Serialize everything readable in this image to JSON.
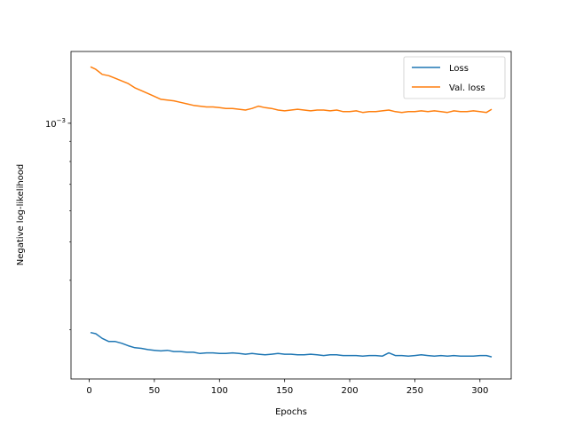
{
  "chart_data": {
    "type": "line",
    "title": "",
    "xlabel": "Epochs",
    "ylabel": "Negative log-likelihood",
    "xlim": [
      -14,
      324
    ],
    "xticks": [
      0,
      50,
      100,
      150,
      200,
      250,
      300
    ],
    "yscale": "log",
    "ylim": [
      0.000225,
      0.00152
    ],
    "yticks": [
      {
        "value": 0.001,
        "base": "10",
        "exp": "−3"
      }
    ],
    "grid": false,
    "legend_position": "top-right",
    "series": [
      {
        "name": "Loss",
        "color": "#1f77b4",
        "x": [
          1,
          5,
          10,
          15,
          20,
          25,
          30,
          35,
          40,
          45,
          50,
          55,
          60,
          65,
          70,
          75,
          80,
          85,
          90,
          95,
          100,
          105,
          110,
          115,
          120,
          125,
          130,
          135,
          140,
          145,
          150,
          155,
          160,
          165,
          170,
          175,
          180,
          185,
          190,
          195,
          200,
          205,
          210,
          215,
          220,
          225,
          230,
          235,
          240,
          245,
          250,
          255,
          260,
          265,
          270,
          275,
          280,
          285,
          290,
          295,
          300,
          305,
          309
        ],
        "values": [
          0.000295,
          0.000293,
          0.000285,
          0.00028,
          0.00028,
          0.000277,
          0.000273,
          0.00027,
          0.000269,
          0.000267,
          0.000266,
          0.000265,
          0.000266,
          0.000264,
          0.000264,
          0.000263,
          0.000263,
          0.000261,
          0.000262,
          0.000262,
          0.000261,
          0.000261,
          0.000262,
          0.000261,
          0.00026,
          0.000261,
          0.00026,
          0.000259,
          0.00026,
          0.000261,
          0.00026,
          0.00026,
          0.000259,
          0.000259,
          0.00026,
          0.000259,
          0.000258,
          0.000259,
          0.000259,
          0.000258,
          0.000258,
          0.000258,
          0.000257,
          0.000258,
          0.000258,
          0.000257,
          0.000262,
          0.000258,
          0.000258,
          0.000257,
          0.000258,
          0.000259,
          0.000258,
          0.000257,
          0.000258,
          0.000257,
          0.000258,
          0.000257,
          0.000257,
          0.000257,
          0.000258,
          0.000258,
          0.000256
        ]
      },
      {
        "name": "Val. loss",
        "color": "#ff7f0e",
        "x": [
          1,
          5,
          10,
          15,
          20,
          25,
          30,
          35,
          40,
          45,
          50,
          55,
          60,
          65,
          70,
          75,
          80,
          85,
          90,
          95,
          100,
          105,
          110,
          115,
          120,
          125,
          130,
          135,
          140,
          145,
          150,
          155,
          160,
          165,
          170,
          175,
          180,
          185,
          190,
          195,
          200,
          205,
          210,
          215,
          220,
          225,
          230,
          235,
          240,
          245,
          250,
          255,
          260,
          265,
          270,
          275,
          280,
          285,
          290,
          295,
          300,
          305,
          309
        ],
        "values": [
          0.00139,
          0.00137,
          0.00133,
          0.00132,
          0.0013,
          0.00128,
          0.00126,
          0.00123,
          0.00121,
          0.00119,
          0.00117,
          0.00115,
          0.001145,
          0.00114,
          0.00113,
          0.00112,
          0.00111,
          0.001105,
          0.0011,
          0.0011,
          0.001095,
          0.00109,
          0.00109,
          0.001085,
          0.00108,
          0.00109,
          0.001105,
          0.001095,
          0.00109,
          0.00108,
          0.001075,
          0.00108,
          0.001085,
          0.00108,
          0.001075,
          0.00108,
          0.00108,
          0.001075,
          0.00108,
          0.00107,
          0.00107,
          0.001075,
          0.001065,
          0.00107,
          0.00107,
          0.001075,
          0.00108,
          0.00107,
          0.001065,
          0.00107,
          0.00107,
          0.001075,
          0.00107,
          0.001075,
          0.00107,
          0.001065,
          0.001075,
          0.00107,
          0.00107,
          0.001075,
          0.00107,
          0.001065,
          0.001085
        ]
      }
    ]
  }
}
